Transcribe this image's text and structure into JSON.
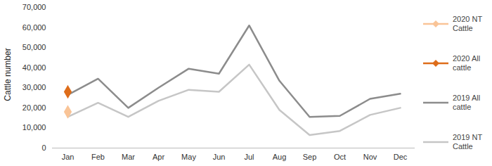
{
  "chart_data": {
    "type": "line",
    "y_label": "Cattle number",
    "categories": [
      "Jan",
      "Feb",
      "Mar",
      "Apr",
      "May",
      "Jun",
      "Jul",
      "Aug",
      "Sep",
      "Oct",
      "Nov",
      "Dec"
    ],
    "series": [
      {
        "name": "2020 NT Cattle",
        "color": "#f9c497",
        "marker": "diamond",
        "values": [
          18000,
          null,
          null,
          null,
          null,
          null,
          null,
          null,
          null,
          null,
          null,
          null
        ]
      },
      {
        "name": "2020 All cattle",
        "color": "#de6d1a",
        "marker": "diamond",
        "values": [
          28000,
          null,
          null,
          null,
          null,
          null,
          null,
          null,
          null,
          null,
          null,
          null
        ]
      },
      {
        "name": "2019 All cattle",
        "color": "#8c8c8c",
        "values": [
          26500,
          34500,
          20000,
          30000,
          39500,
          37000,
          61000,
          33500,
          15500,
          16000,
          24500,
          27000
        ]
      },
      {
        "name": "2019 NT Cattle",
        "color": "#c6c6c6",
        "values": [
          15500,
          22500,
          15500,
          23500,
          29000,
          28000,
          41500,
          19000,
          6500,
          8500,
          16500,
          20000
        ]
      }
    ],
    "ylim": [
      0,
      70000
    ],
    "yticks": [
      0,
      {
        "value": 10000,
        "label": "10,000"
      },
      {
        "value": 20000,
        "label": "20,000"
      },
      {
        "value": 30000,
        "label": "30,000"
      },
      {
        "value": 40000,
        "label": "40,000"
      },
      {
        "value": 50000,
        "label": "50,000"
      },
      {
        "value": 60000,
        "label": "60,000"
      },
      {
        "value": 70000,
        "label": "70,000"
      }
    ],
    "grid": false,
    "legend": "right"
  }
}
